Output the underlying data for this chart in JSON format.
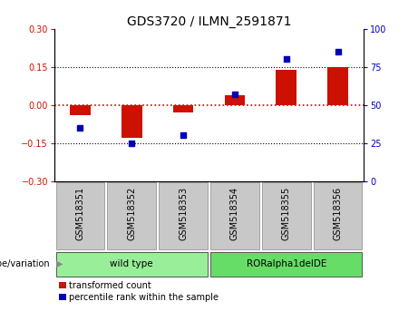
{
  "title": "GDS3720 / ILMN_2591871",
  "samples": [
    "GSM518351",
    "GSM518352",
    "GSM518353",
    "GSM518354",
    "GSM518355",
    "GSM518356"
  ],
  "red_bars": [
    -0.04,
    -0.13,
    -0.03,
    0.04,
    0.14,
    0.15
  ],
  "blue_dots": [
    35,
    25,
    30,
    57,
    80,
    85
  ],
  "groups": [
    {
      "label": "wild type",
      "start": 0,
      "end": 3,
      "color": "#99ee99"
    },
    {
      "label": "RORalpha1delDE",
      "start": 3,
      "end": 6,
      "color": "#66dd66"
    }
  ],
  "ylim_left": [
    -0.3,
    0.3
  ],
  "ylim_right": [
    0,
    100
  ],
  "yticks_left": [
    -0.3,
    -0.15,
    0,
    0.15,
    0.3
  ],
  "yticks_right": [
    0,
    25,
    50,
    75,
    100
  ],
  "bar_color": "#cc1100",
  "dot_color": "#0000bb",
  "hline_color": "#cc0000",
  "bg_label": "#c8c8c8",
  "legend_red_label": "transformed count",
  "legend_blue_label": "percentile rank within the sample",
  "group_label_prefix": "genotype/variation",
  "title_fontsize": 10,
  "tick_fontsize": 7,
  "label_fontsize": 7,
  "group_fontsize": 7.5
}
